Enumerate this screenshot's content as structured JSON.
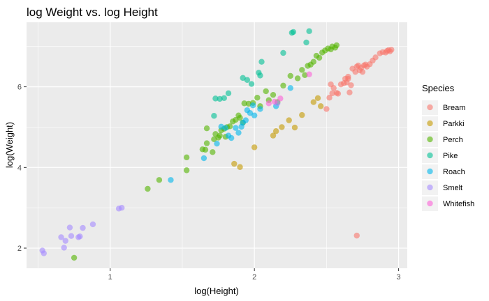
{
  "chart_data": {
    "type": "scatter",
    "title": "log Weight vs. log Height",
    "xlabel": "log(Height)",
    "ylabel": "log(Weight)",
    "xlim": [
      0.42,
      3.06
    ],
    "ylim": [
      1.5,
      7.6
    ],
    "x_ticks": [
      1,
      2,
      3
    ],
    "y_ticks": [
      2,
      4,
      6
    ],
    "grid": true,
    "legend": {
      "title": "Species",
      "position": "right"
    },
    "series": [
      {
        "name": "Bream",
        "color": "#F8766D",
        "points": [
          [
            2.71,
            2.31
          ],
          [
            2.5,
            5.45
          ],
          [
            2.52,
            5.73
          ],
          [
            2.54,
            5.84
          ],
          [
            2.53,
            6.06
          ],
          [
            2.55,
            5.97
          ],
          [
            2.57,
            5.85
          ],
          [
            2.58,
            5.83
          ],
          [
            2.6,
            6.06
          ],
          [
            2.62,
            6.09
          ],
          [
            2.63,
            6.2
          ],
          [
            2.65,
            6.25
          ],
          [
            2.64,
            6.11
          ],
          [
            2.67,
            6.04
          ],
          [
            2.66,
            5.86
          ],
          [
            2.65,
            6.2
          ],
          [
            2.68,
            6.45
          ],
          [
            2.7,
            6.37
          ],
          [
            2.71,
            6.5
          ],
          [
            2.72,
            6.53
          ],
          [
            2.73,
            6.41
          ],
          [
            2.74,
            6.47
          ],
          [
            2.75,
            6.37
          ],
          [
            2.76,
            6.53
          ],
          [
            2.77,
            6.55
          ],
          [
            2.78,
            6.5
          ],
          [
            2.8,
            6.56
          ],
          [
            2.82,
            6.65
          ],
          [
            2.84,
            6.73
          ],
          [
            2.87,
            6.83
          ],
          [
            2.89,
            6.86
          ],
          [
            2.91,
            6.85
          ],
          [
            2.92,
            6.89
          ],
          [
            2.93,
            6.91
          ],
          [
            2.95,
            6.92
          ],
          [
            2.94,
            6.88
          ]
        ]
      },
      {
        "name": "Parkki",
        "color": "#C49A00",
        "points": [
          [
            1.86,
            4.09
          ],
          [
            1.9,
            4.01
          ],
          [
            2.0,
            4.5
          ],
          [
            2.13,
            4.79
          ],
          [
            2.15,
            4.9
          ],
          [
            2.19,
            5.0
          ],
          [
            2.24,
            5.17
          ],
          [
            2.28,
            4.99
          ],
          [
            2.33,
            5.3
          ],
          [
            2.41,
            5.62
          ],
          [
            2.44,
            5.72
          ],
          [
            2.46,
            5.52
          ]
        ]
      },
      {
        "name": "Perch",
        "color": "#53B400",
        "points": [
          [
            0.75,
            1.76
          ],
          [
            1.26,
            3.47
          ],
          [
            1.34,
            3.69
          ],
          [
            1.53,
            3.93
          ],
          [
            1.53,
            4.25
          ],
          [
            1.64,
            4.45
          ],
          [
            1.66,
            4.44
          ],
          [
            1.67,
            4.6
          ],
          [
            1.67,
            4.97
          ],
          [
            1.71,
            4.38
          ],
          [
            1.72,
            4.7
          ],
          [
            1.73,
            4.83
          ],
          [
            1.75,
            4.74
          ],
          [
            1.76,
            4.79
          ],
          [
            1.77,
            4.92
          ],
          [
            1.79,
            4.96
          ],
          [
            1.8,
            4.76
          ],
          [
            1.81,
            5.0
          ],
          [
            1.83,
            5.02
          ],
          [
            1.85,
            5.14
          ],
          [
            1.87,
            5.18
          ],
          [
            1.89,
            5.29
          ],
          [
            1.9,
            5.23
          ],
          [
            1.92,
            5.11
          ],
          [
            1.93,
            5.59
          ],
          [
            1.96,
            5.58
          ],
          [
            1.99,
            5.6
          ],
          [
            2.02,
            5.73
          ],
          [
            2.04,
            5.52
          ],
          [
            2.08,
            5.89
          ],
          [
            2.1,
            5.67
          ],
          [
            2.13,
            5.8
          ],
          [
            2.16,
            5.62
          ],
          [
            2.2,
            6.03
          ],
          [
            2.25,
            6.27
          ],
          [
            2.3,
            6.21
          ],
          [
            2.33,
            6.42
          ],
          [
            2.35,
            6.29
          ],
          [
            2.37,
            6.52
          ],
          [
            2.39,
            6.55
          ],
          [
            2.41,
            6.62
          ],
          [
            2.43,
            6.77
          ],
          [
            2.45,
            6.72
          ],
          [
            2.47,
            6.85
          ],
          [
            2.49,
            6.9
          ],
          [
            2.51,
            6.95
          ],
          [
            2.53,
            6.93
          ],
          [
            2.54,
            7.0
          ],
          [
            2.56,
            6.97
          ],
          [
            2.57,
            7.03
          ]
        ]
      },
      {
        "name": "Pike",
        "color": "#00C094",
        "points": [
          [
            1.72,
            5.28
          ],
          [
            1.73,
            5.71
          ],
          [
            1.76,
            5.7
          ],
          [
            1.79,
            5.72
          ],
          [
            1.82,
            5.84
          ],
          [
            1.92,
            6.22
          ],
          [
            1.95,
            6.17
          ],
          [
            1.98,
            6.07
          ],
          [
            2.03,
            6.35
          ],
          [
            2.04,
            6.28
          ],
          [
            2.05,
            6.62
          ],
          [
            2.2,
            6.84
          ],
          [
            2.26,
            7.34
          ],
          [
            2.27,
            7.36
          ],
          [
            2.36,
            7.1
          ],
          [
            2.38,
            7.38
          ]
        ]
      },
      {
        "name": "Roach",
        "color": "#00B6EB",
        "points": [
          [
            1.42,
            3.69
          ],
          [
            1.65,
            4.23
          ],
          [
            1.74,
            4.59
          ],
          [
            1.77,
            5.01
          ],
          [
            1.8,
            4.98
          ],
          [
            1.82,
            4.79
          ],
          [
            1.84,
            4.73
          ],
          [
            1.87,
            4.98
          ],
          [
            1.89,
            4.86
          ],
          [
            1.91,
            5.01
          ],
          [
            1.92,
            5.11
          ],
          [
            1.94,
            5.17
          ],
          [
            1.95,
            5.42
          ],
          [
            1.97,
            5.35
          ],
          [
            1.99,
            5.54
          ],
          [
            2.0,
            5.29
          ],
          [
            2.04,
            5.45
          ],
          [
            2.15,
            5.52
          ],
          [
            2.25,
            5.97
          ]
        ]
      },
      {
        "name": "Smelt",
        "color": "#A58AFF",
        "points": [
          [
            0.53,
            1.94
          ],
          [
            0.54,
            1.87
          ],
          [
            0.66,
            2.27
          ],
          [
            0.68,
            2.01
          ],
          [
            0.69,
            2.18
          ],
          [
            0.72,
            2.51
          ],
          [
            0.73,
            2.3
          ],
          [
            0.78,
            2.27
          ],
          [
            0.79,
            2.29
          ],
          [
            0.81,
            2.5
          ],
          [
            0.88,
            2.59
          ],
          [
            1.06,
            2.98
          ],
          [
            1.08,
            3.0
          ],
          [
            2.16,
            5.59
          ]
        ]
      },
      {
        "name": "Whitefish",
        "color": "#FB61D7",
        "points": [
          [
            2.1,
            5.59
          ],
          [
            2.14,
            5.63
          ],
          [
            2.18,
            5.71
          ],
          [
            2.38,
            6.31
          ]
        ]
      }
    ]
  }
}
